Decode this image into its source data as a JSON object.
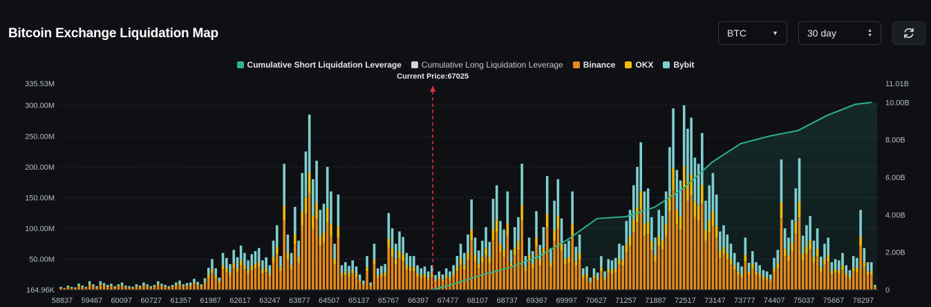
{
  "header": {
    "title": "Bitcoin Exchange Liquidation Map",
    "symbol_select": "BTC",
    "range_select": "30 day"
  },
  "chart_data": {
    "type": "bar",
    "stacked": true,
    "current_price_label": "Current Price:67025",
    "current_price": 67025,
    "legend": [
      {
        "name": "Cumulative Short Liquidation Leverage",
        "color": "#2fb38e"
      },
      {
        "name": "Cumulative Long Liquidation Leverage",
        "color": "#cfd3d6"
      },
      {
        "name": "Binance",
        "color": "#e58a1b"
      },
      {
        "name": "OKX",
        "color": "#f0b90b"
      },
      {
        "name": "Bybit",
        "color": "#7fcfcf"
      }
    ],
    "y_left": {
      "min": 164960,
      "max": 335530000,
      "ticks": [
        "335.53M",
        "300.00M",
        "250.00M",
        "200.00M",
        "150.00M",
        "100.00M",
        "50.00M",
        "164.96K"
      ]
    },
    "y_right": {
      "min": 0,
      "max": 11010000000,
      "ticks": [
        "11.01B",
        "10.00B",
        "8.00B",
        "6.00B",
        "4.00B",
        "2.00B",
        "0"
      ]
    },
    "x_ticks": [
      "58837",
      "59467",
      "60097",
      "60727",
      "61357",
      "61987",
      "62617",
      "63247",
      "63877",
      "64507",
      "65137",
      "65767",
      "66397",
      "67477",
      "68107",
      "68737",
      "69367",
      "69997",
      "70627",
      "71257",
      "71887",
      "72517",
      "73147",
      "73777",
      "74407",
      "75037",
      "75667",
      "76297"
    ],
    "x_range": [
      58837,
      76800
    ],
    "heights_M": [
      5,
      3,
      7,
      5,
      4,
      10,
      7,
      5,
      14,
      9,
      6,
      14,
      11,
      8,
      10,
      6,
      9,
      12,
      7,
      6,
      5,
      9,
      7,
      12,
      9,
      6,
      8,
      14,
      10,
      8,
      6,
      8,
      12,
      15,
      9,
      11,
      12,
      18,
      13,
      9,
      19,
      36,
      50,
      35,
      20,
      60,
      52,
      42,
      65,
      53,
      72,
      60,
      48,
      58,
      63,
      68,
      48,
      53,
      40,
      80,
      105,
      55,
      205,
      90,
      60,
      135,
      80,
      190,
      225,
      285,
      180,
      210,
      130,
      140,
      200,
      160,
      75,
      155,
      40,
      45,
      39,
      48,
      38,
      25,
      15,
      55,
      12,
      75,
      35,
      39,
      42,
      125,
      100,
      75,
      95,
      86,
      60,
      55,
      55,
      40,
      35,
      38,
      30,
      40,
      24,
      30,
      25,
      35,
      30,
      40,
      55,
      75,
      60,
      90,
      147,
      85,
      64,
      80,
      102,
      78,
      148,
      170,
      112,
      98,
      160,
      65,
      102,
      118,
      205,
      55,
      85,
      63,
      128,
      73,
      102,
      185,
      68,
      145,
      180,
      116,
      75,
      80,
      160,
      70,
      90,
      35,
      38,
      20,
      35,
      28,
      55,
      30,
      50,
      48,
      52,
      75,
      72,
      112,
      130,
      170,
      200,
      240,
      160,
      165,
      118,
      85,
      130,
      120,
      160,
      232,
      295,
      195,
      178,
      300,
      262,
      280,
      215,
      205,
      255,
      145,
      170,
      190,
      155,
      95,
      105,
      90,
      75,
      60,
      45,
      38,
      85,
      44,
      63,
      45,
      40,
      32,
      30,
      25,
      52,
      65,
      212,
      100,
      85,
      114,
      165,
      214,
      88,
      105,
      120,
      80,
      100,
      54,
      75,
      85,
      45,
      50,
      48,
      60,
      40,
      32,
      55,
      52,
      130,
      68,
      45,
      45,
      8
    ],
    "cumulative_B": [
      [
        67025,
        0
      ],
      [
        67477,
        0.3
      ],
      [
        68107,
        0.8
      ],
      [
        68737,
        1.2
      ],
      [
        69367,
        1.8
      ],
      [
        69997,
        2.7
      ],
      [
        70627,
        3.8
      ],
      [
        71257,
        3.9
      ],
      [
        71887,
        4.4
      ],
      [
        72517,
        5.4
      ],
      [
        73147,
        6.8
      ],
      [
        73777,
        7.8
      ],
      [
        74407,
        8.2
      ],
      [
        75037,
        8.5
      ],
      [
        75667,
        9.3
      ],
      [
        76297,
        9.9
      ],
      [
        76650,
        10.0
      ]
    ]
  }
}
